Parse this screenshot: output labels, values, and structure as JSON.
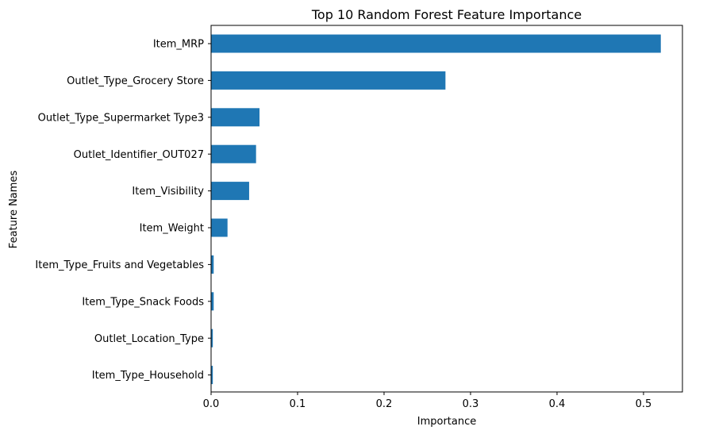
{
  "chart_data": {
    "type": "bar",
    "orientation": "horizontal",
    "title": "Top 10 Random Forest Feature Importance",
    "xlabel": "Importance",
    "ylabel": "Feature Names",
    "categories": [
      "Item_MRP",
      "Outlet_Type_Grocery Store",
      "Outlet_Type_Supermarket Type3",
      "Outlet_Identifier_OUT027",
      "Item_Visibility",
      "Item_Weight",
      "Item_Type_Fruits and Vegetables",
      "Item_Type_Snack Foods",
      "Outlet_Location_Type",
      "Item_Type_Household"
    ],
    "values": [
      0.52,
      0.271,
      0.056,
      0.052,
      0.044,
      0.019,
      0.003,
      0.003,
      0.002,
      0.002
    ],
    "xlim": [
      0,
      0.545
    ],
    "xticks": [
      0.0,
      0.1,
      0.2,
      0.3,
      0.4,
      0.5
    ],
    "xtick_labels": [
      "0.0",
      "0.1",
      "0.2",
      "0.3",
      "0.4",
      "0.5"
    ],
    "bar_color": "#1f77b4",
    "grid": false,
    "legend": "none"
  }
}
